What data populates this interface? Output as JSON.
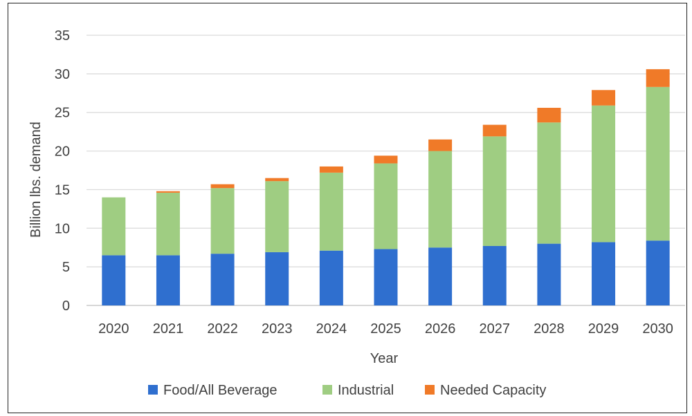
{
  "chart_data": {
    "type": "bar",
    "stacked": true,
    "categories": [
      "2020",
      "2021",
      "2022",
      "2023",
      "2024",
      "2025",
      "2026",
      "2027",
      "2028",
      "2029",
      "2030"
    ],
    "series": [
      {
        "name": "Food/All Beverage",
        "color": "#2f6fcf",
        "values": [
          6.5,
          6.5,
          6.7,
          6.9,
          7.1,
          7.3,
          7.5,
          7.7,
          8.0,
          8.2,
          8.4
        ]
      },
      {
        "name": "Industrial",
        "color": "#9fcd82",
        "values": [
          7.5,
          8.1,
          8.5,
          9.2,
          10.1,
          11.1,
          12.5,
          14.2,
          15.7,
          17.7,
          19.9
        ]
      },
      {
        "name": "Needed Capacity",
        "color": "#f07a28",
        "values": [
          0.0,
          0.2,
          0.5,
          0.4,
          0.8,
          1.0,
          1.5,
          1.5,
          1.9,
          2.0,
          2.3
        ]
      }
    ],
    "xlabel": "Year",
    "ylabel": "Billion lbs. demand",
    "ylim": [
      0,
      35
    ],
    "yticks": [
      "0",
      "5",
      "10",
      "15",
      "20",
      "25",
      "30",
      "35"
    ],
    "grid": true,
    "legend_position": "bottom"
  }
}
